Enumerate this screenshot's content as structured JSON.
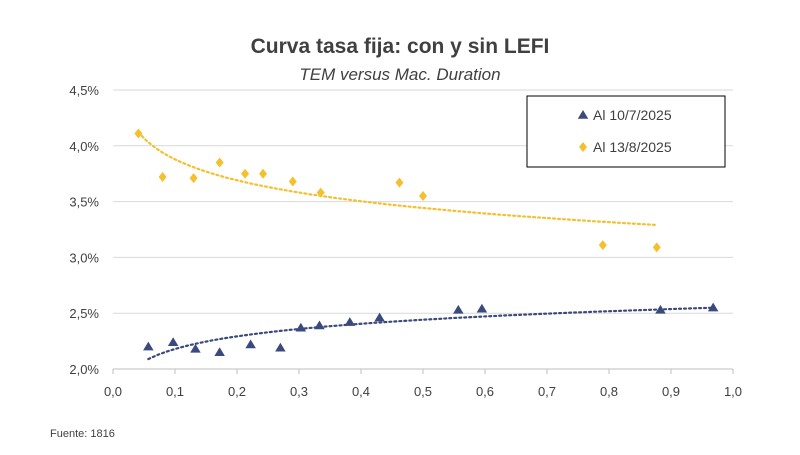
{
  "chart_data": {
    "type": "scatter",
    "title": "Curva tasa fija: con y sin LEFI",
    "subtitle": "TEM versus Mac. Duration",
    "xlim": [
      0.0,
      1.0
    ],
    "ylim": [
      0.02,
      0.045
    ],
    "x_ticks": [
      "0,0",
      "0,1",
      "0,2",
      "0,3",
      "0,4",
      "0,5",
      "0,6",
      "0,7",
      "0,8",
      "0,9",
      "1,0"
    ],
    "y_ticks": [
      "2,0%",
      "2,5%",
      "3,0%",
      "3,5%",
      "4,0%",
      "4,5%"
    ],
    "grid": "horizontal",
    "legend_position": "top-right",
    "series": [
      {
        "name": "Al 10/7/2025",
        "marker": "triangle",
        "color": "#3b4a7d",
        "trendline": "logarithmic",
        "points": [
          [
            0.057,
            0.022
          ],
          [
            0.097,
            0.0224
          ],
          [
            0.133,
            0.0218
          ],
          [
            0.172,
            0.0215
          ],
          [
            0.222,
            0.0222
          ],
          [
            0.27,
            0.0219
          ],
          [
            0.303,
            0.0237
          ],
          [
            0.333,
            0.0239
          ],
          [
            0.382,
            0.0242
          ],
          [
            0.43,
            0.0246
          ],
          [
            0.557,
            0.0253
          ],
          [
            0.595,
            0.0254
          ],
          [
            0.883,
            0.0253
          ],
          [
            0.968,
            0.0255
          ]
        ]
      },
      {
        "name": "Al 13/8/2025",
        "marker": "diamond",
        "color": "#f5c02e",
        "trendline": "logarithmic",
        "points": [
          [
            0.041,
            0.0411
          ],
          [
            0.08,
            0.0372
          ],
          [
            0.13,
            0.0371
          ],
          [
            0.172,
            0.0385
          ],
          [
            0.213,
            0.0375
          ],
          [
            0.242,
            0.0375
          ],
          [
            0.29,
            0.0368
          ],
          [
            0.335,
            0.0358
          ],
          [
            0.462,
            0.0367
          ],
          [
            0.5,
            0.0355
          ],
          [
            0.79,
            0.0311
          ],
          [
            0.877,
            0.0309
          ]
        ]
      }
    ]
  },
  "source": "Fuente: 1816"
}
